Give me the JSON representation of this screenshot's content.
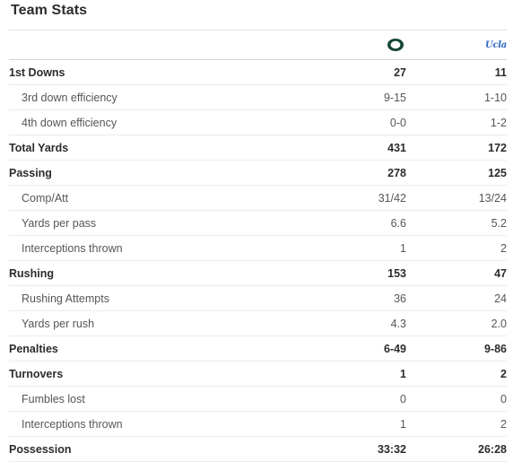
{
  "section_title": "Team Stats",
  "teams": {
    "home": {
      "logo_icon": "oregon-o-logo-icon",
      "color": "#154733",
      "accent": "#fee123"
    },
    "away": {
      "logo_icon": "ucla-logo-icon",
      "logo_text": "Ucla",
      "color": "#2d68c4"
    }
  },
  "rows": [
    {
      "label": "1st Downs",
      "home": "27",
      "away": "11",
      "kind": "main"
    },
    {
      "label": "3rd down efficiency",
      "home": "9-15",
      "away": "1-10",
      "kind": "sub"
    },
    {
      "label": "4th down efficiency",
      "home": "0-0",
      "away": "1-2",
      "kind": "sub"
    },
    {
      "label": "Total Yards",
      "home": "431",
      "away": "172",
      "kind": "main"
    },
    {
      "label": "Passing",
      "home": "278",
      "away": "125",
      "kind": "main"
    },
    {
      "label": "Comp/Att",
      "home": "31/42",
      "away": "13/24",
      "kind": "sub"
    },
    {
      "label": "Yards per pass",
      "home": "6.6",
      "away": "5.2",
      "kind": "sub"
    },
    {
      "label": "Interceptions thrown",
      "home": "1",
      "away": "2",
      "kind": "sub"
    },
    {
      "label": "Rushing",
      "home": "153",
      "away": "47",
      "kind": "main"
    },
    {
      "label": "Rushing Attempts",
      "home": "36",
      "away": "24",
      "kind": "sub"
    },
    {
      "label": "Yards per rush",
      "home": "4.3",
      "away": "2.0",
      "kind": "sub"
    },
    {
      "label": "Penalties",
      "home": "6-49",
      "away": "9-86",
      "kind": "main"
    },
    {
      "label": "Turnovers",
      "home": "1",
      "away": "2",
      "kind": "main"
    },
    {
      "label": "Fumbles lost",
      "home": "0",
      "away": "0",
      "kind": "sub"
    },
    {
      "label": "Interceptions thrown",
      "home": "1",
      "away": "2",
      "kind": "sub"
    },
    {
      "label": "Possession",
      "home": "33:32",
      "away": "26:28",
      "kind": "main"
    }
  ]
}
